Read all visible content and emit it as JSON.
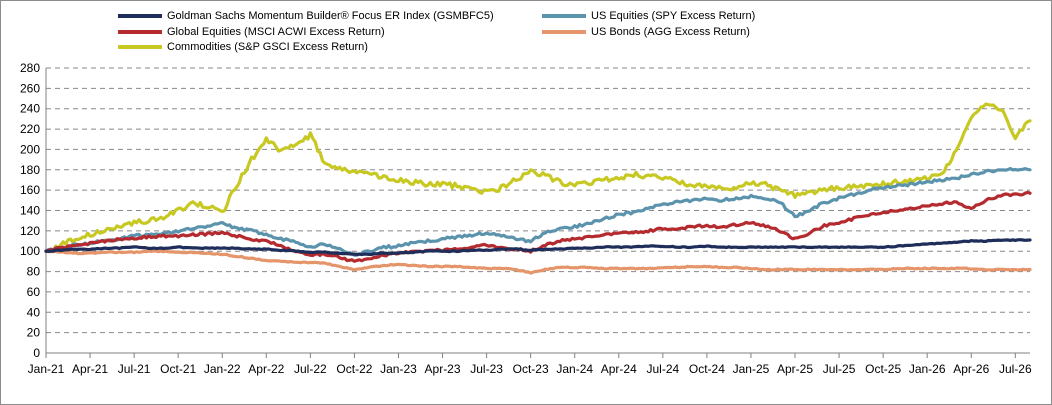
{
  "chart_data": {
    "type": "line",
    "title": "",
    "xlabel": "",
    "ylabel": "",
    "ylim": [
      0,
      280
    ],
    "yticks": [
      0,
      20,
      40,
      60,
      80,
      100,
      120,
      140,
      160,
      180,
      200,
      220,
      240,
      260,
      280
    ],
    "x_tick_labels": [
      "Jan-21",
      "Apr-21",
      "Jul-21",
      "Oct-21",
      "Jan-22",
      "Apr-22",
      "Jul-22",
      "Oct-22",
      "Jan-23",
      "Apr-23",
      "Jul-23",
      "Oct-23",
      "Jan-24",
      "Apr-24",
      "Jul-24",
      "Oct-24",
      "Jan-25",
      "Apr-25",
      "Jul-25",
      "Oct-25",
      "Jan-26",
      "Apr-26",
      "Jul-26"
    ],
    "x_tick_index": [
      0,
      3,
      6,
      9,
      12,
      15,
      18,
      21,
      24,
      27,
      30,
      33,
      36,
      39,
      42,
      45,
      48,
      51,
      54,
      57,
      60,
      63,
      66
    ],
    "grid": "horizontal-dashed",
    "legend_position": "top",
    "x_months": [
      "Jan-21",
      "Feb-21",
      "Mar-21",
      "Apr-21",
      "May-21",
      "Jun-21",
      "Jul-21",
      "Aug-21",
      "Sep-21",
      "Oct-21",
      "Nov-21",
      "Dec-21",
      "Jan-22",
      "Feb-22",
      "Mar-22",
      "Apr-22",
      "May-22",
      "Jun-22",
      "Jul-22",
      "Aug-22",
      "Sep-22",
      "Oct-22",
      "Nov-22",
      "Dec-22",
      "Jan-23",
      "Feb-23",
      "Mar-23",
      "Apr-23",
      "May-23",
      "Jun-23",
      "Jul-23",
      "Aug-23",
      "Sep-23",
      "Oct-23",
      "Nov-23",
      "Dec-23",
      "Jan-24",
      "Feb-24",
      "Mar-24",
      "Apr-24",
      "May-24",
      "Jun-24",
      "Jul-24",
      "Aug-24",
      "Sep-24",
      "Oct-24",
      "Nov-24",
      "Dec-24",
      "Jan-25",
      "Feb-25",
      "Mar-25",
      "Apr-25",
      "May-25",
      "Jun-25",
      "Jul-25",
      "Aug-25",
      "Sep-25",
      "Oct-25",
      "Nov-25",
      "Dec-25",
      "Jan-26",
      "Feb-26",
      "Mar-26",
      "Apr-26",
      "May-26",
      "Jun-26",
      "Jul-26",
      "Aug-26"
    ],
    "series": [
      {
        "name": "Goldman Sachs Momentum Builder® Focus ER Index (GSMBFC5)",
        "color": "#1f2d5a",
        "values": [
          100,
          101,
          102,
          102,
          103,
          103,
          104,
          103,
          103,
          104,
          103,
          103,
          103,
          103,
          102,
          102,
          101,
          100,
          99,
          99,
          98,
          97,
          97,
          98,
          98,
          99,
          100,
          100,
          100,
          101,
          101,
          102,
          102,
          101,
          102,
          102,
          103,
          103,
          104,
          104,
          104,
          105,
          105,
          104,
          104,
          105,
          104,
          104,
          104,
          104,
          104,
          104,
          104,
          104,
          104,
          104,
          104,
          104,
          105,
          106,
          107,
          108,
          109,
          110,
          110,
          111,
          111,
          111
        ]
      },
      {
        "name": "US Equities (SPY Excess Return)",
        "color": "#5b93ad",
        "values": [
          100,
          103,
          106,
          108,
          110,
          112,
          115,
          116,
          118,
          120,
          122,
          124,
          128,
          122,
          120,
          117,
          112,
          110,
          104,
          107,
          102,
          96,
          100,
          104,
          105,
          108,
          110,
          112,
          114,
          116,
          118,
          115,
          112,
          110,
          118,
          122,
          124,
          128,
          132,
          136,
          138,
          142,
          146,
          148,
          150,
          152,
          150,
          152,
          154,
          152,
          148,
          134,
          140,
          148,
          152,
          156,
          160,
          162,
          164,
          166,
          168,
          170,
          172,
          175,
          178,
          180,
          180,
          180
        ]
      },
      {
        "name": "Global Equities (MSCI ACWI Excess Return)",
        "color": "#b52a2e",
        "values": [
          100,
          103,
          106,
          108,
          110,
          112,
          113,
          114,
          115,
          115,
          116,
          117,
          118,
          115,
          112,
          110,
          105,
          100,
          96,
          97,
          94,
          90,
          93,
          96,
          98,
          100,
          100,
          101,
          102,
          104,
          106,
          104,
          102,
          100,
          106,
          110,
          112,
          114,
          116,
          118,
          118,
          120,
          122,
          122,
          124,
          125,
          124,
          126,
          128,
          125,
          120,
          112,
          118,
          125,
          128,
          132,
          136,
          138,
          140,
          142,
          145,
          147,
          148,
          142,
          150,
          155,
          156,
          157
        ]
      },
      {
        "name": "Commodities (S&P GSCI Excess Return)",
        "color": "#c8c823",
        "values": [
          100,
          106,
          112,
          116,
          120,
          124,
          128,
          130,
          134,
          140,
          146,
          145,
          138,
          165,
          190,
          210,
          198,
          205,
          214,
          186,
          180,
          178,
          176,
          172,
          170,
          168,
          165,
          166,
          164,
          160,
          158,
          162,
          170,
          178,
          174,
          168,
          165,
          168,
          170,
          172,
          175,
          174,
          172,
          168,
          165,
          164,
          163,
          162,
          168,
          165,
          160,
          155,
          158,
          160,
          162,
          164,
          165,
          166,
          168,
          170,
          172,
          174,
          200,
          230,
          245,
          240,
          212,
          228
        ]
      },
      {
        "name": "US Bonds (AGG Excess Return)",
        "color": "#e5956a",
        "values": [
          100,
          99,
          98,
          98,
          99,
          99,
          99,
          100,
          100,
          99,
          99,
          98,
          97,
          95,
          93,
          91,
          90,
          89,
          89,
          88,
          85,
          82,
          84,
          86,
          87,
          86,
          85,
          85,
          85,
          84,
          83,
          83,
          82,
          79,
          82,
          84,
          84,
          84,
          83,
          83,
          83,
          83,
          84,
          84,
          85,
          85,
          84,
          84,
          83,
          82,
          82,
          82,
          82,
          82,
          82,
          82,
          82,
          82,
          83,
          83,
          83,
          83,
          83,
          83,
          82,
          82,
          82,
          82
        ]
      }
    ]
  }
}
